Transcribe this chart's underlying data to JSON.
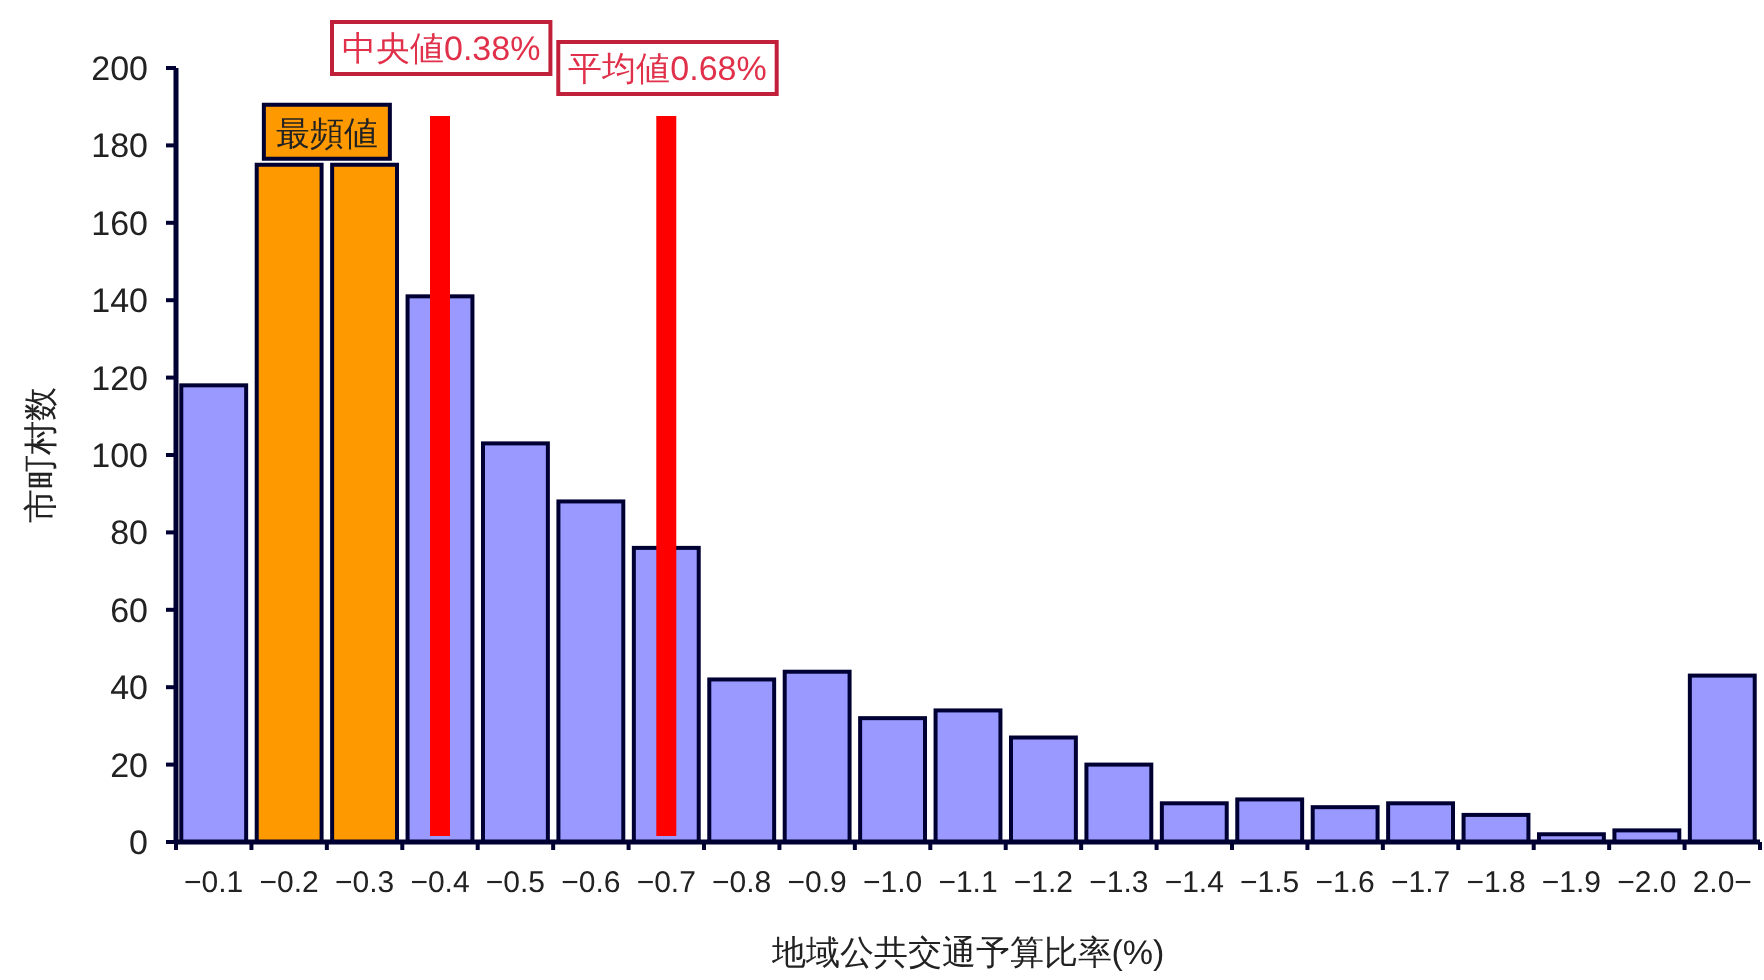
{
  "chart_data": {
    "type": "bar",
    "xlabel": "地域公共交通予算比率(%)",
    "ylabel": "市町村数",
    "categories": [
      "−0.1",
      "−0.2",
      "−0.3",
      "−0.4",
      "−0.5",
      "−0.6",
      "−0.7",
      "−0.8",
      "−0.9",
      "−1.0",
      "−1.1",
      "−1.2",
      "−1.3",
      "−1.4",
      "−1.5",
      "−1.6",
      "−1.7",
      "−1.8",
      "−1.9",
      "−2.0",
      "2.0−"
    ],
    "values": [
      118,
      175,
      175,
      141,
      103,
      88,
      76,
      42,
      44,
      32,
      34,
      27,
      20,
      10,
      11,
      9,
      10,
      7,
      2,
      3,
      43
    ],
    "colors": [
      "#9999ff",
      "#ff9900",
      "#ff9900",
      "#9999ff",
      "#9999ff",
      "#9999ff",
      "#9999ff",
      "#9999ff",
      "#9999ff",
      "#9999ff",
      "#9999ff",
      "#9999ff",
      "#9999ff",
      "#9999ff",
      "#9999ff",
      "#9999ff",
      "#9999ff",
      "#9999ff",
      "#9999ff",
      "#9999ff",
      "#9999ff"
    ],
    "ylim": [
      0,
      200
    ],
    "yticks": [
      0,
      20,
      40,
      60,
      80,
      100,
      120,
      140,
      160,
      180,
      200
    ],
    "ref_lines": [
      {
        "axis": "x",
        "value": "−0.4",
        "label": "中央値0.38%",
        "color": "#ff0000"
      },
      {
        "axis": "x",
        "value": "−0.7",
        "label": "平均値0.68%",
        "color": "#ff0000"
      }
    ],
    "annotations": [
      "最頻値"
    ]
  }
}
